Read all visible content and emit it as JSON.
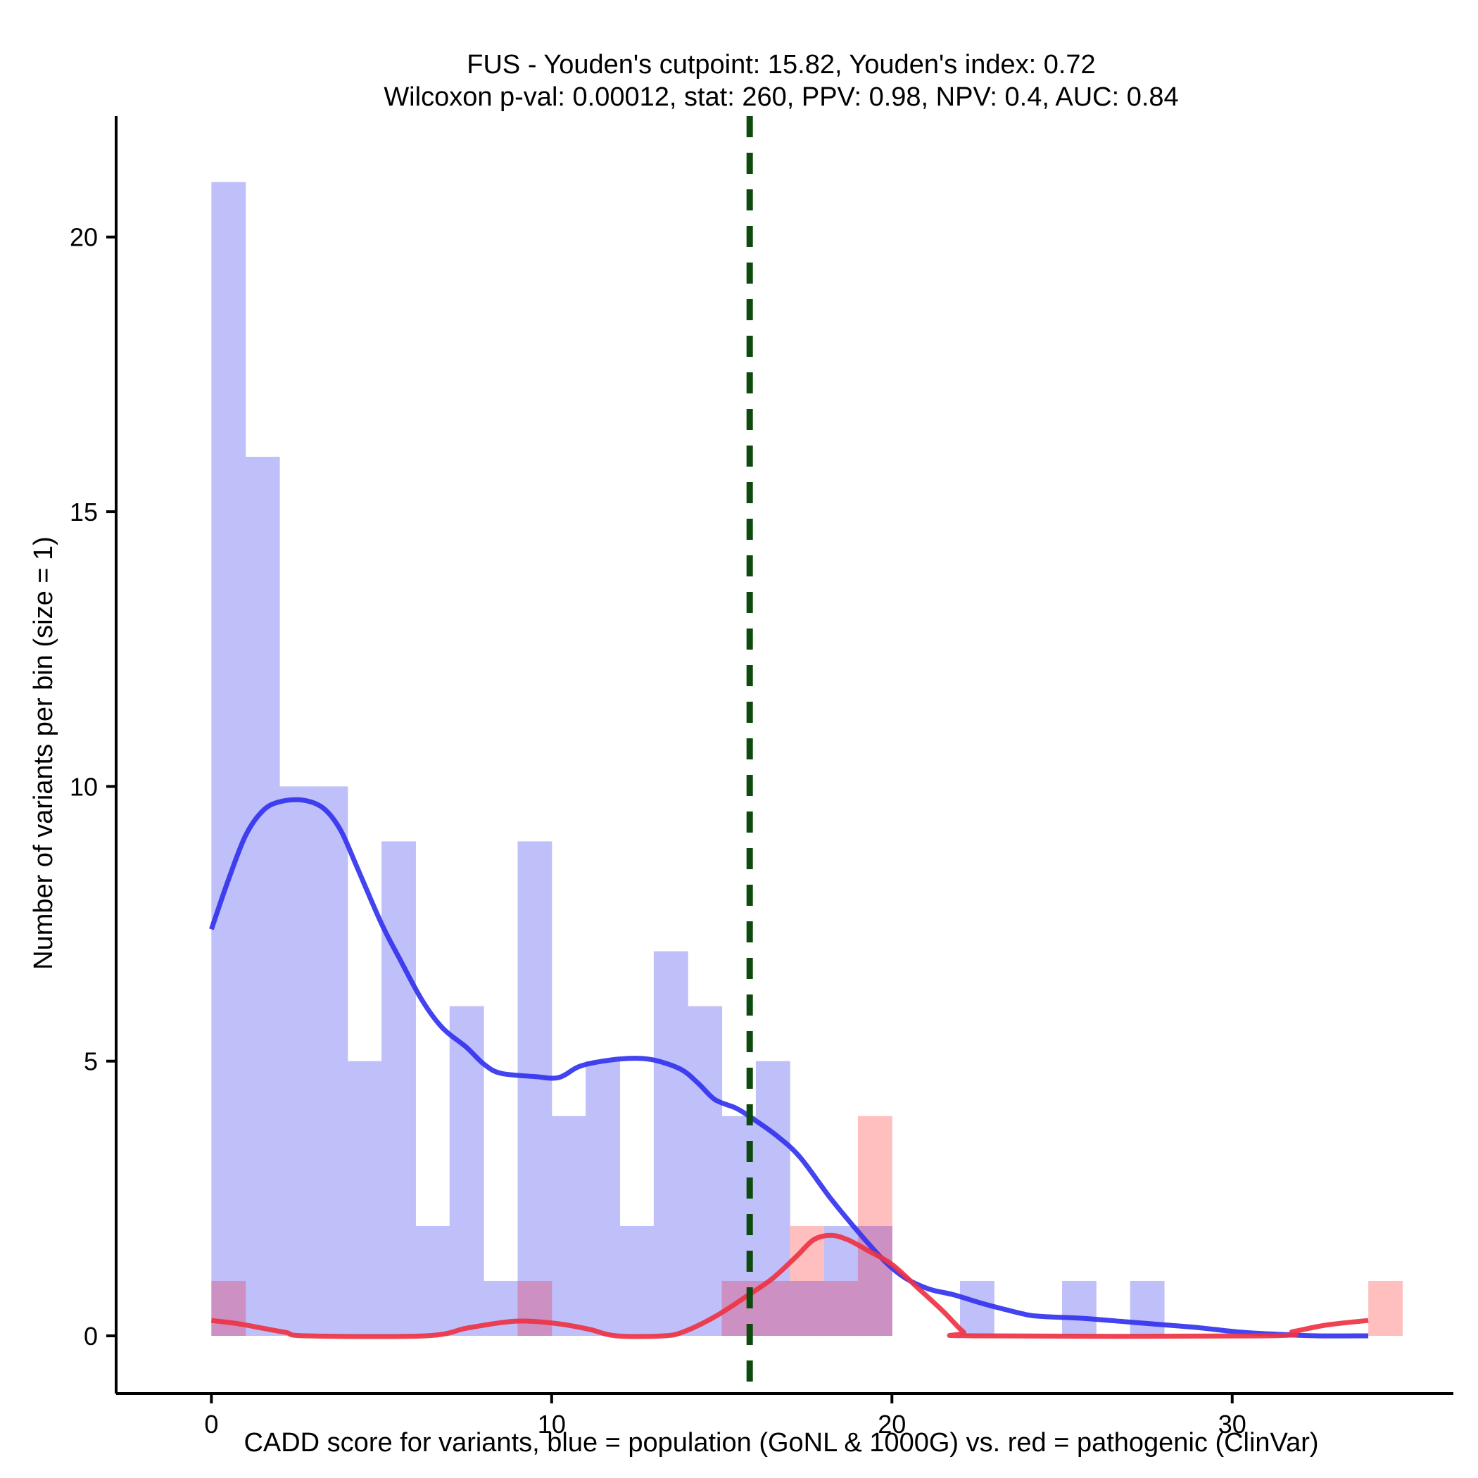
{
  "chart_data": {
    "type": "histogram",
    "title_line1": "FUS - Youden's cutpoint: 15.82, Youden's index: 0.72",
    "title_line2": "Wilcoxon p-val: 0.00012, stat: 260, PPV: 0.98, NPV: 0.4, AUC: 0.84",
    "xlabel": "CADD score for variants, blue = population (GoNL & 1000G) vs. red = pathogenic (ClinVar)",
    "ylabel": "Number of variants per bin (size = 1)",
    "xlim": [
      -2.8,
      36.5
    ],
    "ylim": [
      -1.05,
      22.2
    ],
    "xticks": [
      0,
      10,
      20,
      30
    ],
    "xtick_labels": [
      "0",
      "10",
      "20",
      "30"
    ],
    "yticks": [
      0,
      5,
      10,
      15,
      20
    ],
    "ytick_labels": [
      "0",
      "5",
      "10",
      "15",
      "20"
    ],
    "bin_size": 1,
    "cutpoint": 15.82,
    "colors": {
      "population_bar": "#bfbffa",
      "pathogenic_bar": "#ffbfbf",
      "overlap_bar": "#cc90c2",
      "population_line": "#3333ee",
      "pathogenic_line": "#ee3344",
      "cutpoint_line": "#0d4a0d",
      "axis": "#000000"
    },
    "series": [
      {
        "name": "population (GoNL & 1000G)",
        "bins": [
          {
            "x0": 0,
            "count": 21
          },
          {
            "x0": 1,
            "count": 16
          },
          {
            "x0": 2,
            "count": 10
          },
          {
            "x0": 3,
            "count": 10
          },
          {
            "x0": 4,
            "count": 5
          },
          {
            "x0": 5,
            "count": 9
          },
          {
            "x0": 6,
            "count": 2
          },
          {
            "x0": 7,
            "count": 6
          },
          {
            "x0": 8,
            "count": 1
          },
          {
            "x0": 9,
            "count": 9
          },
          {
            "x0": 10,
            "count": 4
          },
          {
            "x0": 11,
            "count": 5
          },
          {
            "x0": 12,
            "count": 2
          },
          {
            "x0": 13,
            "count": 7
          },
          {
            "x0": 14,
            "count": 6
          },
          {
            "x0": 15,
            "count": 4
          },
          {
            "x0": 16,
            "count": 5
          },
          {
            "x0": 17,
            "count": 1
          },
          {
            "x0": 18,
            "count": 2
          },
          {
            "x0": 19,
            "count": 2
          },
          {
            "x0": 22,
            "count": 1
          },
          {
            "x0": 25,
            "count": 1
          },
          {
            "x0": 27,
            "count": 1
          }
        ],
        "density_line": [
          [
            0,
            7.4
          ],
          [
            0.5,
            8.3
          ],
          [
            1,
            9.1
          ],
          [
            1.5,
            9.55
          ],
          [
            2,
            9.72
          ],
          [
            2.7,
            9.75
          ],
          [
            3.3,
            9.6
          ],
          [
            3.8,
            9.2
          ],
          [
            4.3,
            8.5
          ],
          [
            5,
            7.5
          ],
          [
            5.5,
            6.9
          ],
          [
            6.2,
            6.1
          ],
          [
            6.8,
            5.6
          ],
          [
            7.5,
            5.25
          ],
          [
            8,
            4.95
          ],
          [
            8.5,
            4.78
          ],
          [
            9.5,
            4.72
          ],
          [
            10.2,
            4.7
          ],
          [
            10.8,
            4.9
          ],
          [
            11.5,
            5.0
          ],
          [
            12.3,
            5.05
          ],
          [
            13,
            5.02
          ],
          [
            13.8,
            4.85
          ],
          [
            14.3,
            4.6
          ],
          [
            14.8,
            4.3
          ],
          [
            15.4,
            4.15
          ],
          [
            15.8,
            4.0
          ],
          [
            16.6,
            3.65
          ],
          [
            17.3,
            3.25
          ],
          [
            18.2,
            2.5
          ],
          [
            19.0,
            1.9
          ],
          [
            19.8,
            1.35
          ],
          [
            20.4,
            1.05
          ],
          [
            21.1,
            0.85
          ],
          [
            21.8,
            0.75
          ],
          [
            22.6,
            0.6
          ],
          [
            23.2,
            0.5
          ],
          [
            24,
            0.38
          ],
          [
            24.5,
            0.35
          ],
          [
            25.6,
            0.32
          ],
          [
            27,
            0.25
          ],
          [
            28,
            0.2
          ],
          [
            29,
            0.15
          ],
          [
            30.2,
            0.07
          ],
          [
            31.3,
            0.03
          ],
          [
            32.5,
            0.0
          ],
          [
            34,
            0.0
          ]
        ]
      },
      {
        "name": "pathogenic (ClinVar)",
        "bins": [
          {
            "x0": 0,
            "count": 1
          },
          {
            "x0": 9,
            "count": 1
          },
          {
            "x0": 15,
            "count": 1
          },
          {
            "x0": 16,
            "count": 1
          },
          {
            "x0": 17,
            "count": 2
          },
          {
            "x0": 18,
            "count": 1
          },
          {
            "x0": 19,
            "count": 4
          },
          {
            "x0": 34,
            "count": 1
          }
        ],
        "density_line": [
          [
            0,
            0.28
          ],
          [
            0.8,
            0.22
          ],
          [
            1.5,
            0.14
          ],
          [
            2.2,
            0.06
          ],
          [
            2.8,
            0.0
          ],
          [
            6.3,
            0.0
          ],
          [
            7.5,
            0.14
          ],
          [
            8.5,
            0.24
          ],
          [
            9.2,
            0.27
          ],
          [
            10.2,
            0.22
          ],
          [
            11.1,
            0.12
          ],
          [
            11.9,
            0.0
          ],
          [
            13.3,
            0.0
          ],
          [
            13.9,
            0.08
          ],
          [
            14.8,
            0.35
          ],
          [
            15.8,
            0.75
          ],
          [
            16.5,
            1.05
          ],
          [
            17.2,
            1.45
          ],
          [
            17.7,
            1.75
          ],
          [
            18.2,
            1.83
          ],
          [
            18.7,
            1.75
          ],
          [
            19.3,
            1.55
          ],
          [
            20,
            1.3
          ],
          [
            20.8,
            0.85
          ],
          [
            21.5,
            0.45
          ],
          [
            22.1,
            0.07
          ],
          [
            22.4,
            0.0
          ],
          [
            31.0,
            0.0
          ],
          [
            31.8,
            0.08
          ],
          [
            32.8,
            0.2
          ],
          [
            34,
            0.28
          ]
        ]
      }
    ]
  }
}
